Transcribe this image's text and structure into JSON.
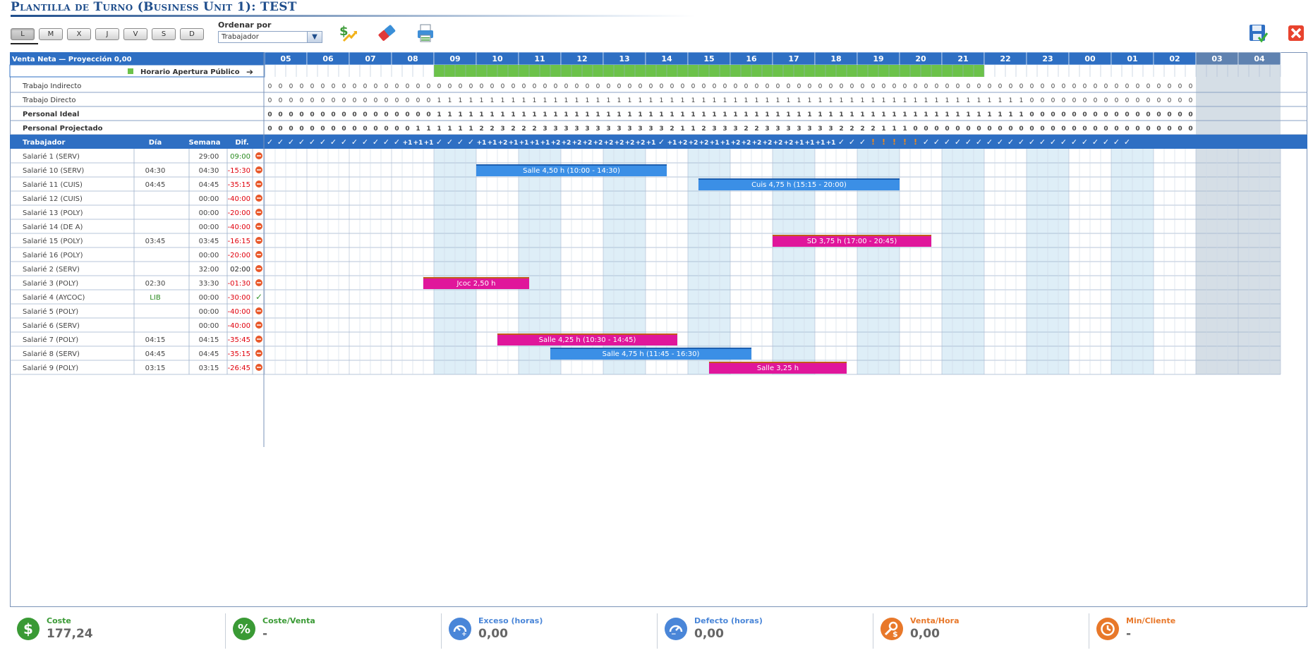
{
  "title": "Plantilla de Turno (Business Unit 1): TEST",
  "days": [
    "L",
    "M",
    "X",
    "J",
    "V",
    "S",
    "D"
  ],
  "sort": {
    "label": "Ordenar por",
    "value": "Trabajador"
  },
  "toolbar_icons": [
    "dollar-trend-icon",
    "eraser-icon",
    "printer-icon",
    "save-icon",
    "close-icon"
  ],
  "colors": {
    "header_blue": "#2e6fc3",
    "open_green": "#6cc24a",
    "shift_blue": "#3b8fe6",
    "shift_pink": "#e0169b",
    "light_blue": "#deeef7",
    "closed_gray": "#d5dee6",
    "neg_red": "#e0000c",
    "pos_green": "#2a8a1f"
  },
  "grid": {
    "hours": [
      "05",
      "06",
      "07",
      "08",
      "09",
      "10",
      "11",
      "12",
      "13",
      "14",
      "15",
      "16",
      "17",
      "18",
      "19",
      "20",
      "21",
      "22",
      "23",
      "00",
      "01",
      "02",
      "03",
      "04"
    ],
    "header_left": "Venta Neta  —  Proyección 0,00",
    "opening_label": "Horario Apertura Público",
    "summary_rows": [
      {
        "label": "Trabajo Indirecto",
        "bold": false,
        "values": "000000000000000000000000000000000000000000000000000000000000000000000000000000000000000000000000"
      },
      {
        "label": "Trabajo Directo",
        "bold": false,
        "values": "000000000000000011111111111111111111111111111111111111111111111111111111000000000000000000000000"
      },
      {
        "label": "Personal Ideal",
        "bold": true,
        "values": "000000000000000011111111111111111111111111111111111111111111111111111111000000000000000000000000"
      },
      {
        "label": "Personal Projectado",
        "bold": true,
        "values": "000000000000001111112232223333333333332112333223333333222211100000000000000000000000000000000000"
      }
    ],
    "status_row": "✓✓✓✓✓✓✓✓✓✓✓✓✓+1+1+1✓✓✓✓+1+1+2+1+1+1+1+2+2+2+2+2+2+2+2+2+1✓+1+2+2+2+1+1+2+2+2+2+2+2+1+1+1+1✓✓✓!!!!!✓✓✓✓✓✓✓✓✓✓✓✓✓✓✓✓✓✓✓✓",
    "columns": {
      "worker": "Trabajador",
      "day": "Día",
      "week": "Semana",
      "diff": "Dif."
    }
  },
  "workers": [
    {
      "name": "Salarié 1 (SERV)",
      "day": "",
      "week": "29:00",
      "diff": "09:00",
      "diff_color": "green",
      "status": "alert"
    },
    {
      "name": "Salarié 10 (SERV)",
      "day": "04:30",
      "week": "04:30",
      "diff": "-15:30",
      "diff_color": "red",
      "status": "alert"
    },
    {
      "name": "Salarié 11 (CUIS)",
      "day": "04:45",
      "week": "04:45",
      "diff": "-35:15",
      "diff_color": "red",
      "status": "alert"
    },
    {
      "name": "Salarié 12 (CUIS)",
      "day": "",
      "week": "00:00",
      "diff": "-40:00",
      "diff_color": "red",
      "status": "alert"
    },
    {
      "name": "Salarié 13 (POLY)",
      "day": "",
      "week": "00:00",
      "diff": "-20:00",
      "diff_color": "red",
      "status": "alert"
    },
    {
      "name": "Salarié 14 (DE A)",
      "day": "",
      "week": "00:00",
      "diff": "-40:00",
      "diff_color": "red",
      "status": "alert"
    },
    {
      "name": "Salarié 15 (POLY)",
      "day": "03:45",
      "week": "03:45",
      "diff": "-16:15",
      "diff_color": "red",
      "status": "alert"
    },
    {
      "name": "Salarié 16 (POLY)",
      "day": "",
      "week": "00:00",
      "diff": "-20:00",
      "diff_color": "red",
      "status": "alert"
    },
    {
      "name": "Salarié 2 (SERV)",
      "day": "",
      "week": "32:00",
      "diff": "02:00",
      "diff_color": "black",
      "status": "alert"
    },
    {
      "name": "Salarié 3 (POLY)",
      "day": "02:30",
      "week": "33:30",
      "diff": "-01:30",
      "diff_color": "red",
      "status": "alert"
    },
    {
      "name": "Salarié 4 (AYCOC)",
      "day": "LIB",
      "week": "00:00",
      "diff": "-30:00",
      "diff_color": "red",
      "status": "ok"
    },
    {
      "name": "Salarié 5 (POLY)",
      "day": "",
      "week": "00:00",
      "diff": "-40:00",
      "diff_color": "red",
      "status": "alert"
    },
    {
      "name": "Salarié 6 (SERV)",
      "day": "",
      "week": "00:00",
      "diff": "-40:00",
      "diff_color": "red",
      "status": "alert"
    },
    {
      "name": "Salarié 7 (POLY)",
      "day": "04:15",
      "week": "04:15",
      "diff": "-35:45",
      "diff_color": "red",
      "status": "alert"
    },
    {
      "name": "Salarié 8 (SERV)",
      "day": "04:45",
      "week": "04:45",
      "diff": "-35:15",
      "diff_color": "red",
      "status": "alert"
    },
    {
      "name": "Salarié 9 (POLY)",
      "day": "03:15",
      "week": "03:15",
      "diff": "-26:45",
      "diff_color": "red",
      "status": "alert"
    }
  ],
  "shifts": [
    {
      "row": 1,
      "start": "10:00",
      "end": "14:30",
      "label": "Salle 4,50 h (10:00 - 14:30)",
      "color": "blue"
    },
    {
      "row": 2,
      "start": "15:15",
      "end": "20:00",
      "label": "Cuis 4,75 h (15:15 - 20:00)",
      "color": "blue"
    },
    {
      "row": 6,
      "start": "17:00",
      "end": "20:45",
      "label": "SD 3,75 h (17:00 - 20:45)",
      "color": "pink"
    },
    {
      "row": 9,
      "start": "08:45",
      "end": "11:15",
      "label": "Jcoc 2,50 h",
      "color": "pink"
    },
    {
      "row": 13,
      "start": "10:30",
      "end": "14:45",
      "label": "Salle 4,25 h (10:30 - 14:45)",
      "color": "pink"
    },
    {
      "row": 14,
      "start": "11:45",
      "end": "16:30",
      "label": "Salle 4,75 h (11:45 - 16:30)",
      "color": "blue"
    },
    {
      "row": 15,
      "start": "15:30",
      "end": "18:45",
      "label": "Salle 3,25 h",
      "color": "pink"
    }
  ],
  "footer": [
    {
      "label": "Coste",
      "value": "177,24",
      "color": "#3a9a35",
      "label_color": "#3a9a35",
      "icon": "dollar-icon"
    },
    {
      "label": "Coste/Venta",
      "value": "-",
      "color": "#3a9a35",
      "label_color": "#3a9a35",
      "icon": "percent-icon"
    },
    {
      "label": "Exceso (horas)",
      "value": "0,00",
      "color": "#4a86d8",
      "label_color": "#4a86d8",
      "icon": "gauge-plus-icon"
    },
    {
      "label": "Defecto (horas)",
      "value": "0,00",
      "color": "#4a86d8",
      "label_color": "#4a86d8",
      "icon": "gauge-minus-icon"
    },
    {
      "label": "Venta/Hora",
      "value": "0,00",
      "color": "#e8782a",
      "label_color": "#e8782a",
      "icon": "wrench-dollar-icon"
    },
    {
      "label": "Min/Cliente",
      "value": "-",
      "color": "#e8782a",
      "label_color": "#e8782a",
      "icon": "clock-icon"
    }
  ]
}
